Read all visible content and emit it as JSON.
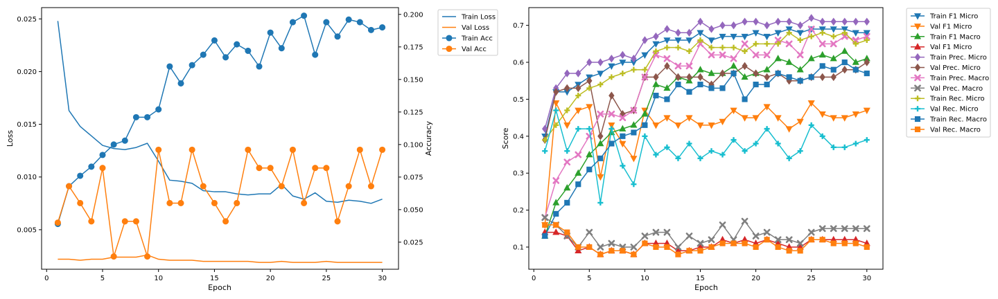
{
  "chart_data": [
    {
      "type": "line",
      "xlabel": "Epoch",
      "ylabel": "Loss",
      "y2label": "Accuracy",
      "xlim": [
        -0.45,
        31.45
      ],
      "ylim": [
        0.00125,
        0.02607
      ],
      "y2lim": [
        0.0042,
        0.2052
      ],
      "xticks": [
        0,
        5,
        10,
        15,
        20,
        25,
        30
      ],
      "yticks": [
        0.005,
        0.01,
        0.015,
        0.02,
        0.025
      ],
      "ytick_labels": [
        "0.005",
        "0.010",
        "0.015",
        "0.020",
        "0.025"
      ],
      "y2ticks": [
        0.025,
        0.05,
        0.075,
        0.1,
        0.125,
        0.15,
        0.175,
        0.2
      ],
      "y2tick_labels": [
        "0.025",
        "0.050",
        "0.075",
        "0.100",
        "0.125",
        "0.150",
        "0.175",
        "0.200"
      ],
      "legend": "outside-right",
      "x": [
        1,
        2,
        3,
        4,
        5,
        6,
        7,
        8,
        9,
        10,
        11,
        12,
        13,
        14,
        15,
        16,
        17,
        18,
        19,
        20,
        21,
        22,
        23,
        24,
        25,
        26,
        27,
        28,
        29,
        30
      ],
      "series": [
        {
          "name": "Train Loss",
          "axis": "left",
          "color": "#1f77b4",
          "marker": "none",
          "values": [
            0.0248,
            0.0163,
            0.0148,
            0.0139,
            0.013,
            0.0127,
            0.0126,
            0.0128,
            0.0132,
            0.0115,
            0.0097,
            0.0096,
            0.0094,
            0.0087,
            0.0086,
            0.0086,
            0.0084,
            0.0083,
            0.0084,
            0.0084,
            0.0093,
            0.0082,
            0.0079,
            0.0085,
            0.0077,
            0.0076,
            0.0078,
            0.0077,
            0.0075,
            0.0079
          ]
        },
        {
          "name": "Val Loss",
          "axis": "left",
          "color": "#ff7f0e",
          "marker": "none",
          "values": [
            0.0022,
            0.0022,
            0.0021,
            0.0022,
            0.0022,
            0.0024,
            0.0024,
            0.0024,
            0.0026,
            0.0022,
            0.0021,
            0.0021,
            0.0021,
            0.002,
            0.002,
            0.002,
            0.002,
            0.002,
            0.0019,
            0.0019,
            0.002,
            0.0019,
            0.0019,
            0.0019,
            0.002,
            0.0019,
            0.0019,
            0.0019,
            0.0019,
            0.0019
          ]
        },
        {
          "name": "Train Acc",
          "axis": "right",
          "color": "#1f77b4",
          "marker": "circle",
          "values": [
            0.039,
            0.068,
            0.076,
            0.083,
            0.092,
            0.1,
            0.103,
            0.121,
            0.121,
            0.127,
            0.16,
            0.147,
            0.161,
            0.169,
            0.18,
            0.167,
            0.177,
            0.172,
            0.16,
            0.186,
            0.174,
            0.194,
            0.199,
            0.169,
            0.194,
            0.183,
            0.196,
            0.194,
            0.188,
            0.19
          ]
        },
        {
          "name": "Val Acc",
          "axis": "right",
          "color": "#ff7f0e",
          "marker": "circle",
          "values": [
            0.04,
            0.068,
            0.055,
            0.041,
            0.082,
            0.014,
            0.041,
            0.041,
            0.014,
            0.096,
            0.055,
            0.055,
            0.096,
            0.068,
            0.055,
            0.041,
            0.055,
            0.096,
            0.082,
            0.082,
            0.068,
            0.096,
            0.055,
            0.082,
            0.082,
            0.041,
            0.068,
            0.096,
            0.068,
            0.096
          ]
        }
      ]
    },
    {
      "type": "line",
      "xlabel": "Epoch",
      "ylabel": "Score",
      "xlim": [
        -0.45,
        31.45
      ],
      "ylim": [
        0.04,
        0.748
      ],
      "xticks": [
        0,
        5,
        10,
        15,
        20,
        25,
        30
      ],
      "yticks": [
        0.1,
        0.2,
        0.3,
        0.4,
        0.5,
        0.6,
        0.7
      ],
      "ytick_labels": [
        "0.1",
        "0.2",
        "0.3",
        "0.4",
        "0.5",
        "0.6",
        "0.7"
      ],
      "legend": "outside-right",
      "x": [
        1,
        2,
        3,
        4,
        5,
        6,
        7,
        8,
        9,
        10,
        11,
        12,
        13,
        14,
        15,
        16,
        17,
        18,
        19,
        20,
        21,
        22,
        23,
        24,
        25,
        26,
        27,
        28,
        29,
        30
      ],
      "series": [
        {
          "name": "Train F1 Micro",
          "color": "#1f77b4",
          "marker": "tri-down",
          "values": [
            0.4,
            0.52,
            0.52,
            0.54,
            0.56,
            0.57,
            0.59,
            0.6,
            0.6,
            0.62,
            0.65,
            0.66,
            0.66,
            0.66,
            0.68,
            0.66,
            0.67,
            0.67,
            0.67,
            0.68,
            0.67,
            0.68,
            0.69,
            0.68,
            0.69,
            0.69,
            0.69,
            0.69,
            0.68,
            0.68
          ]
        },
        {
          "name": "Val F1 Micro",
          "color": "#ff7f0e",
          "marker": "tri-down",
          "values": [
            0.16,
            0.49,
            0.43,
            0.47,
            0.48,
            0.29,
            0.43,
            0.38,
            0.34,
            0.47,
            0.43,
            0.45,
            0.43,
            0.45,
            0.43,
            0.43,
            0.44,
            0.47,
            0.45,
            0.45,
            0.48,
            0.45,
            0.42,
            0.44,
            0.49,
            0.46,
            0.45,
            0.45,
            0.46,
            0.47
          ]
        },
        {
          "name": "Train F1 Macro",
          "color": "#2ca02c",
          "marker": "tri-up",
          "values": [
            0.13,
            0.22,
            0.26,
            0.3,
            0.35,
            0.38,
            0.41,
            0.42,
            0.43,
            0.46,
            0.54,
            0.53,
            0.56,
            0.55,
            0.58,
            0.57,
            0.57,
            0.59,
            0.56,
            0.57,
            0.58,
            0.61,
            0.6,
            0.58,
            0.61,
            0.62,
            0.61,
            0.63,
            0.6,
            0.61
          ]
        },
        {
          "name": "Val F1 Micro",
          "color": "#d62728",
          "marker": "tri-up",
          "values": [
            0.14,
            0.14,
            0.13,
            0.09,
            0.1,
            0.08,
            0.09,
            0.09,
            0.08,
            0.11,
            0.11,
            0.11,
            0.09,
            0.09,
            0.1,
            0.1,
            0.12,
            0.11,
            0.12,
            0.11,
            0.12,
            0.11,
            0.1,
            0.1,
            0.12,
            0.12,
            0.12,
            0.12,
            0.12,
            0.11
          ]
        },
        {
          "name": "Train Prec. Micro",
          "color": "#9467bd",
          "marker": "diamond",
          "values": [
            0.42,
            0.53,
            0.57,
            0.57,
            0.6,
            0.6,
            0.61,
            0.62,
            0.61,
            0.66,
            0.67,
            0.69,
            0.68,
            0.68,
            0.71,
            0.69,
            0.7,
            0.7,
            0.71,
            0.71,
            0.7,
            0.71,
            0.71,
            0.7,
            0.72,
            0.71,
            0.71,
            0.71,
            0.71,
            0.71
          ]
        },
        {
          "name": "Val Prec. Micro",
          "color": "#8c564b",
          "marker": "diamond",
          "values": [
            0.39,
            0.52,
            0.53,
            0.53,
            0.55,
            0.4,
            0.51,
            0.46,
            0.47,
            0.56,
            0.56,
            0.59,
            0.56,
            0.56,
            0.56,
            0.54,
            0.57,
            0.57,
            0.59,
            0.57,
            0.56,
            0.57,
            0.55,
            0.55,
            0.56,
            0.56,
            0.56,
            0.58,
            0.58,
            0.6
          ]
        },
        {
          "name": "Train Prec. Macro",
          "color": "#e377c2",
          "marker": "x",
          "values": [
            0.18,
            0.28,
            0.33,
            0.35,
            0.4,
            0.46,
            0.46,
            0.45,
            0.47,
            0.56,
            0.62,
            0.61,
            0.59,
            0.59,
            0.65,
            0.62,
            0.62,
            0.61,
            0.65,
            0.62,
            0.62,
            0.66,
            0.65,
            0.62,
            0.69,
            0.65,
            0.65,
            0.67,
            0.66,
            0.67
          ]
        },
        {
          "name": "Val Prec. Macro",
          "color": "#7f7f7f",
          "marker": "x",
          "values": [
            0.18,
            0.16,
            0.13,
            0.1,
            0.14,
            0.1,
            0.11,
            0.1,
            0.1,
            0.13,
            0.14,
            0.14,
            0.1,
            0.13,
            0.11,
            0.12,
            0.16,
            0.12,
            0.17,
            0.13,
            0.14,
            0.12,
            0.12,
            0.11,
            0.14,
            0.15,
            0.15,
            0.15,
            0.15,
            0.15
          ]
        },
        {
          "name": "Train Rec. Micro",
          "color": "#bcbd22",
          "marker": "plus",
          "values": [
            0.39,
            0.43,
            0.47,
            0.51,
            0.53,
            0.54,
            0.56,
            0.57,
            0.58,
            0.58,
            0.63,
            0.64,
            0.64,
            0.63,
            0.66,
            0.64,
            0.64,
            0.64,
            0.63,
            0.65,
            0.65,
            0.65,
            0.68,
            0.66,
            0.67,
            0.68,
            0.67,
            0.68,
            0.65,
            0.66
          ]
        },
        {
          "name": "Val Rec. Micro",
          "color": "#17becf",
          "marker": "plus",
          "values": [
            0.36,
            0.47,
            0.36,
            0.42,
            0.42,
            0.22,
            0.42,
            0.32,
            0.27,
            0.4,
            0.35,
            0.37,
            0.34,
            0.38,
            0.34,
            0.36,
            0.35,
            0.39,
            0.36,
            0.38,
            0.42,
            0.38,
            0.34,
            0.36,
            0.43,
            0.4,
            0.37,
            0.37,
            0.38,
            0.39
          ]
        },
        {
          "name": "Train Rec. Macro",
          "color": "#1f77b4",
          "marker": "square",
          "values": [
            0.13,
            0.19,
            0.22,
            0.27,
            0.31,
            0.34,
            0.38,
            0.4,
            0.41,
            0.43,
            0.51,
            0.5,
            0.54,
            0.52,
            0.54,
            0.53,
            0.53,
            0.57,
            0.5,
            0.54,
            0.54,
            0.57,
            0.56,
            0.55,
            0.56,
            0.59,
            0.58,
            0.6,
            0.58,
            0.57
          ]
        },
        {
          "name": "Val Rec. Macro",
          "color": "#ff7f0e",
          "marker": "square",
          "values": [
            0.16,
            0.16,
            0.14,
            0.1,
            0.1,
            0.08,
            0.09,
            0.09,
            0.08,
            0.11,
            0.1,
            0.1,
            0.08,
            0.09,
            0.09,
            0.1,
            0.11,
            0.11,
            0.11,
            0.1,
            0.12,
            0.1,
            0.09,
            0.09,
            0.12,
            0.12,
            0.11,
            0.11,
            0.11,
            0.1
          ]
        }
      ]
    }
  ]
}
